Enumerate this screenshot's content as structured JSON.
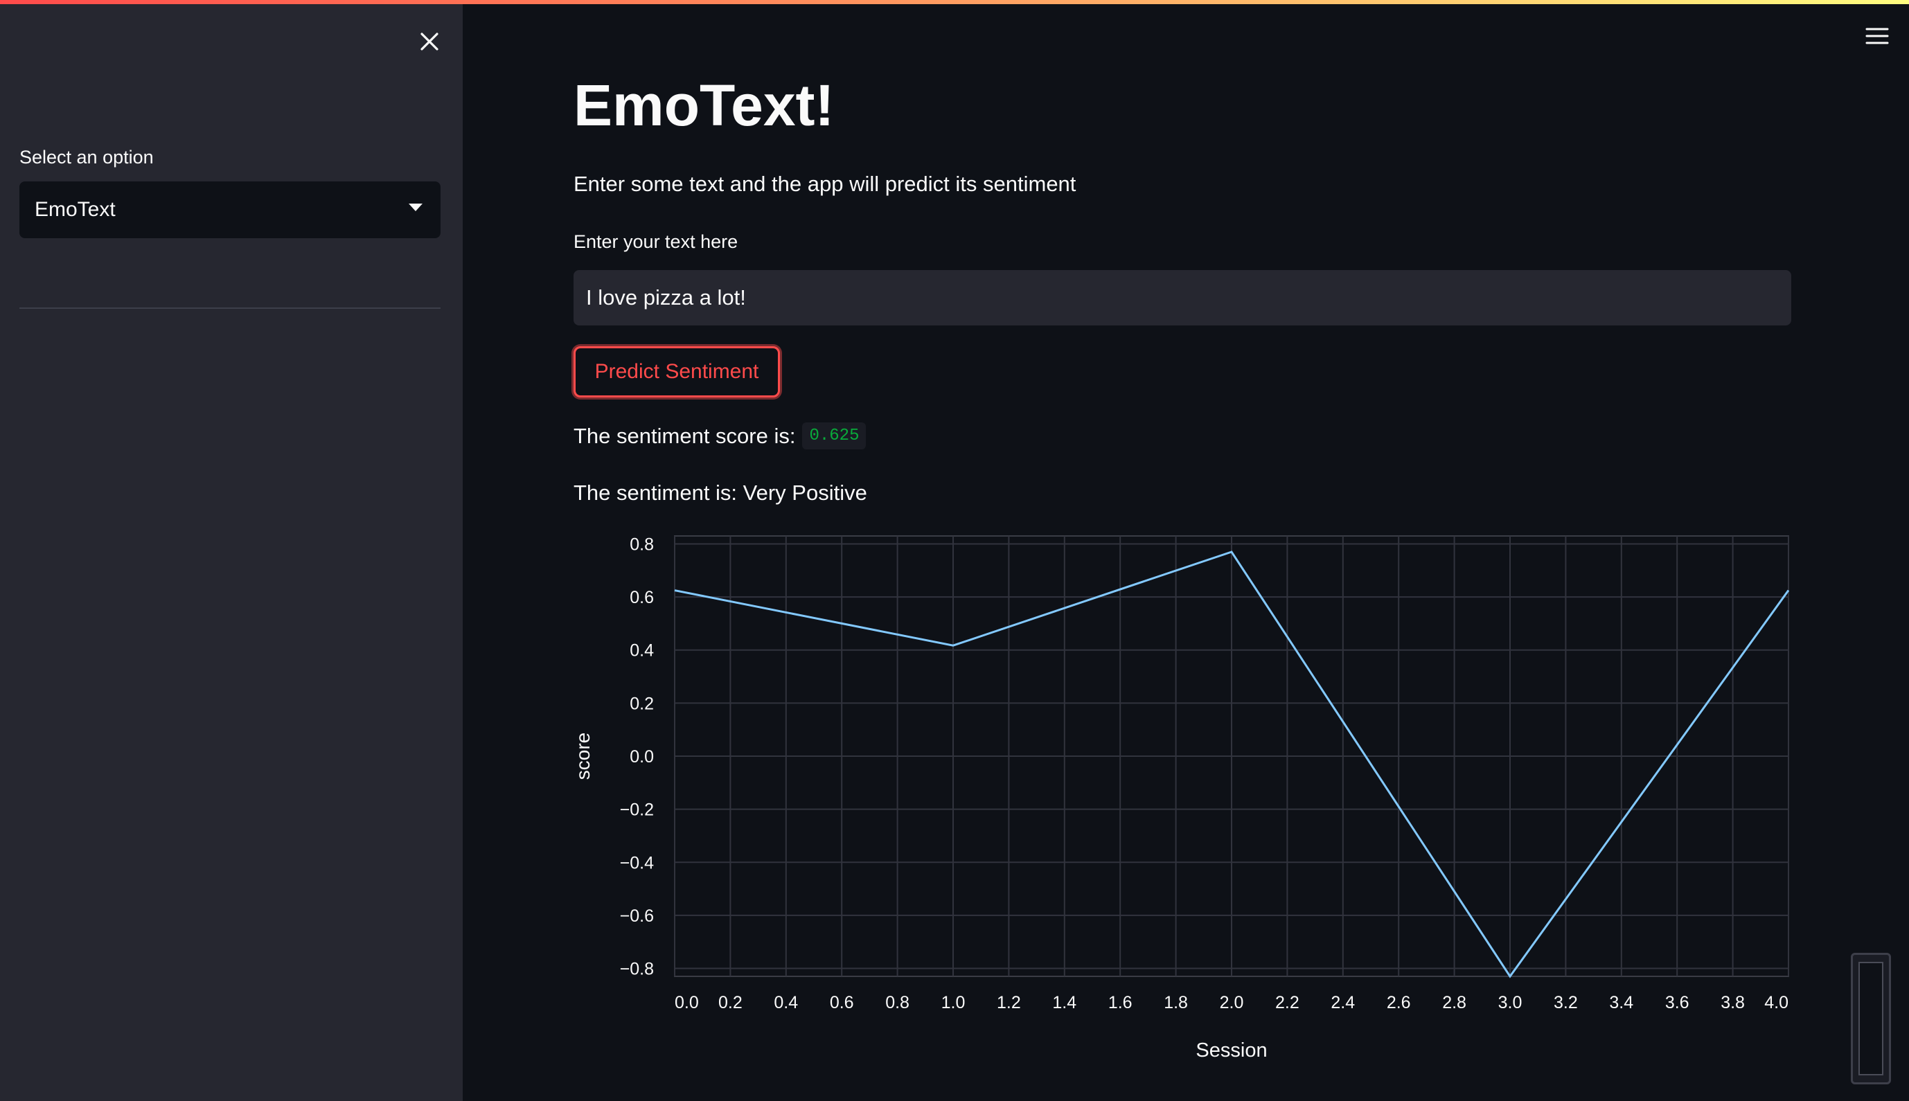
{
  "sidebar": {
    "select_label": "Select an option",
    "selected_option": "EmoText"
  },
  "main": {
    "title": "EmoText!",
    "subtitle": "Enter some text and the app will predict its sentiment",
    "input_label": "Enter your text here",
    "input_value": "I love pizza a lot!",
    "predict_button": "Predict Sentiment",
    "score_prefix": "The sentiment score is:",
    "score_value": "0.625",
    "sentiment_text": "The sentiment is: Very Positive"
  },
  "icons": {
    "close": "close-icon",
    "menu": "hamburger-menu-icon",
    "dropdown": "chevron-down-icon"
  },
  "colors": {
    "accent": "#ff4b4b",
    "background": "#0e1117",
    "sidebar": "#262730",
    "line": "#83c9ff",
    "code_text": "#09ab3b"
  },
  "chart_data": {
    "type": "line",
    "xlabel": "Session",
    "ylabel": "score",
    "x": [
      0,
      1,
      2,
      3,
      4
    ],
    "values": [
      0.625,
      0.417,
      0.77,
      -0.83,
      0.625
    ],
    "xlim": [
      0,
      4
    ],
    "ylim": [
      -0.83,
      0.83
    ],
    "x_ticks": [
      "0.0",
      "0.2",
      "0.4",
      "0.6",
      "0.8",
      "1.0",
      "1.2",
      "1.4",
      "1.6",
      "1.8",
      "2.0",
      "2.2",
      "2.4",
      "2.6",
      "2.8",
      "3.0",
      "3.2",
      "3.4",
      "3.6",
      "3.8",
      "4.0"
    ],
    "y_ticks": [
      "0.8",
      "0.6",
      "0.4",
      "0.2",
      "0.0",
      "−0.2",
      "−0.4",
      "−0.6",
      "−0.8"
    ],
    "grid": true
  }
}
